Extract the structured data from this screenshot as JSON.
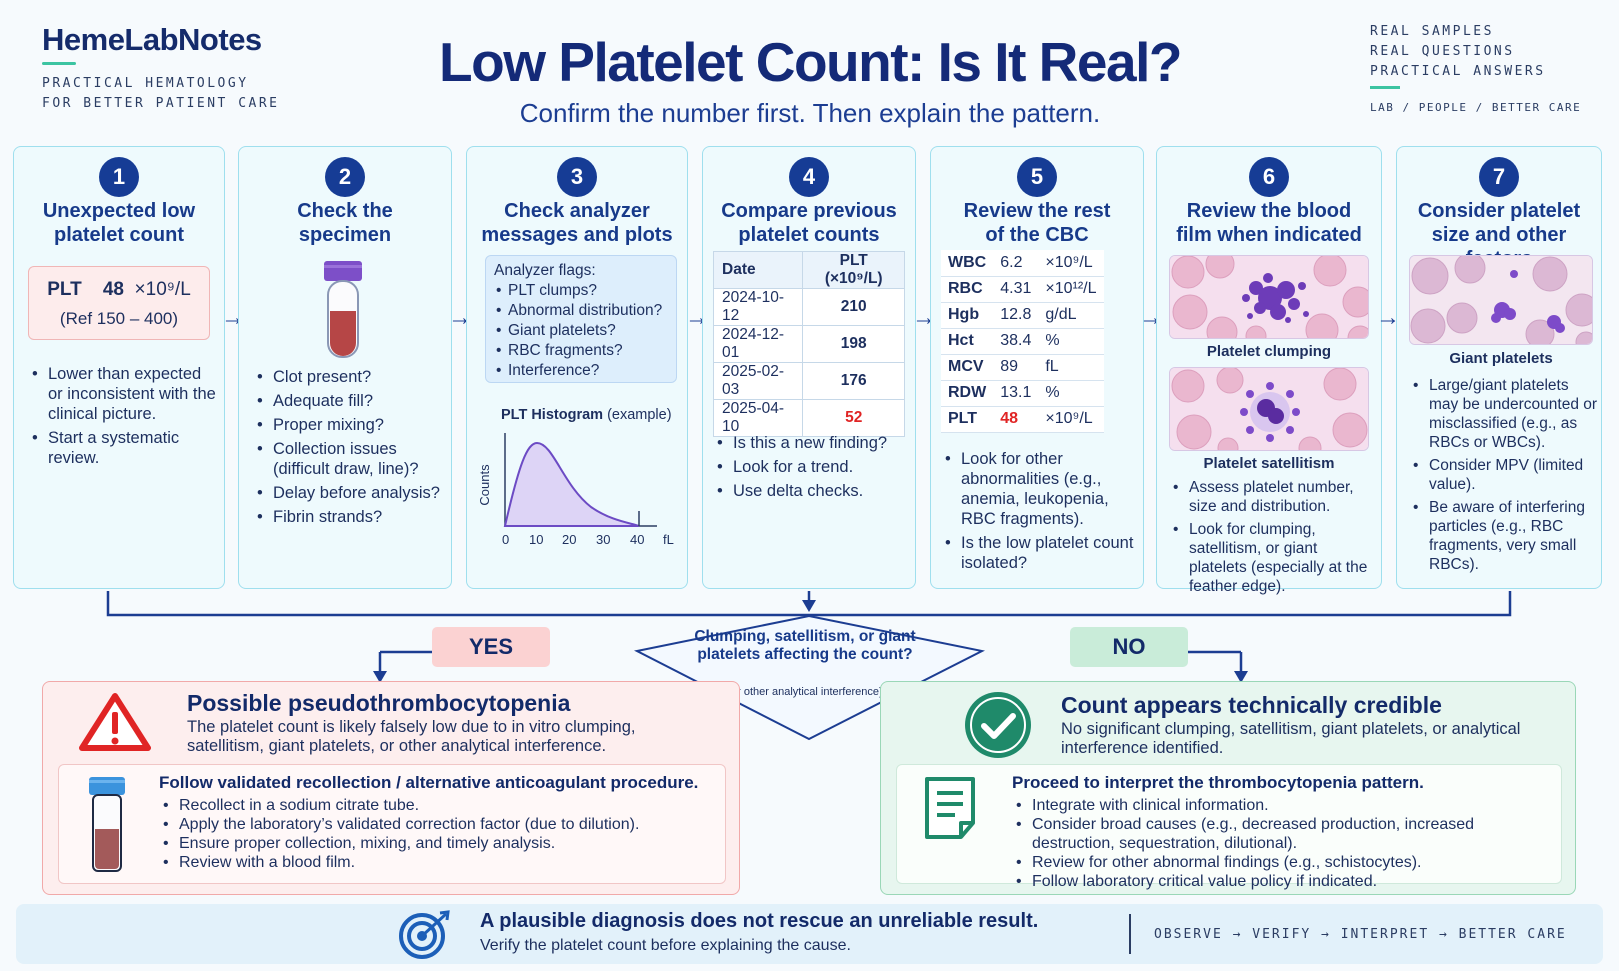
{
  "header": {
    "brand": "HemeLabNotes",
    "brand_sub_1": "PRACTICAL HEMATOLOGY",
    "brand_sub_2": "FOR BETTER PATIENT CARE",
    "title": "Low Platelet Count: Is It Real?",
    "subtitle": "Confirm the number first. Then explain the pattern.",
    "tagline_1": "REAL SAMPLES",
    "tagline_2": "REAL QUESTIONS",
    "tagline_3": "PRACTICAL ANSWERS",
    "tagline_4": "LAB / PEOPLE / BETTER CARE"
  },
  "steps": [
    {
      "number": "1",
      "title_1": "Unexpected low",
      "title_2": "platelet count",
      "plt_label": "PLT",
      "plt_value": "48",
      "plt_unit": "×10⁹/L",
      "plt_ref": "(Ref 150 – 400)",
      "bullets": [
        "Lower than expected or inconsistent with the clinical picture.",
        "Start a systematic review."
      ]
    },
    {
      "number": "2",
      "title_1": "Check the",
      "title_2": "specimen",
      "bullets": [
        "Clot present?",
        "Adequate fill?",
        "Proper mixing?",
        "Collection issues (difficult draw, line)?",
        "Delay before analysis?",
        "Fibrin strands?"
      ]
    },
    {
      "number": "3",
      "title_1": "Check analyzer",
      "title_2": "messages and plots",
      "flags_title": "Analyzer flags:",
      "flags": [
        "PLT clumps?",
        "Abnormal distribution?",
        "Giant platelets?",
        "RBC fragments?",
        "Interference?"
      ],
      "histogram_title": "PLT Histogram",
      "histogram_note": "(example)",
      "histogram_ylabel": "Counts",
      "histogram_ticks": [
        "0",
        "10",
        "20",
        "30",
        "40"
      ],
      "histogram_unit": "fL"
    },
    {
      "number": "4",
      "title_1": "Compare previous",
      "title_2": "platelet counts",
      "table_head": [
        "Date",
        "PLT (×10⁹/L)"
      ],
      "table_rows": [
        {
          "date": "2024-10-12",
          "value": "210"
        },
        {
          "date": "2024-12-01",
          "value": "198"
        },
        {
          "date": "2025-02-03",
          "value": "176"
        },
        {
          "date": "2025-04-10",
          "value": "52"
        }
      ],
      "bullets": [
        "Is this a new finding?",
        "Look for a trend.",
        "Use delta checks."
      ]
    },
    {
      "number": "5",
      "title_1": "Review the rest",
      "title_2": "of the CBC",
      "cbc": [
        {
          "k": "WBC",
          "v": "6.2",
          "u": "×10⁹/L"
        },
        {
          "k": "RBC",
          "v": "4.31",
          "u": "×10¹²/L"
        },
        {
          "k": "Hgb",
          "v": "12.8",
          "u": "g/dL"
        },
        {
          "k": "Hct",
          "v": "38.4",
          "u": "%"
        },
        {
          "k": "MCV",
          "v": "89",
          "u": "fL"
        },
        {
          "k": "RDW",
          "v": "13.1",
          "u": "%"
        },
        {
          "k": "PLT",
          "v": "48",
          "u": "×10⁹/L"
        }
      ],
      "bullets": [
        "Look for other abnormalities (e.g., anemia, leukopenia, RBC fragments).",
        "Is the low platelet count isolated?"
      ]
    },
    {
      "number": "6",
      "title_1": "Review the blood",
      "title_2": "film when indicated",
      "caption_1": "Platelet clumping",
      "caption_2": "Platelet satellitism",
      "bullets": [
        "Assess platelet number, size and distribution.",
        "Look for clumping, satellitism, or giant platelets (especially at the feather edge)."
      ]
    },
    {
      "number": "7",
      "title_1": "Consider platelet",
      "title_2": "size and other factors",
      "caption": "Giant platelets",
      "bullets": [
        "Large/giant platelets may be undercounted or misclassified (e.g., as RBCs or WBCs).",
        "Consider MPV (limited value).",
        "Be aware of interfering particles (e.g., RBC fragments, very small RBCs)."
      ]
    }
  ],
  "decision": {
    "question": "Clumping, satellitism, or giant platelets affecting the count?",
    "question_sub": "(or other analytical interference)",
    "yes": "YES",
    "no": "NO"
  },
  "yes_panel": {
    "title": "Possible pseudothrombocytopenia",
    "desc": "The platelet count is likely falsely low due to in vitro clumping, satellitism, giant platelets, or other analytical interference.",
    "inner_title": "Follow validated recollection / alternative anticoagulant procedure.",
    "items": [
      "Recollect in a sodium citrate tube.",
      "Apply the laboratory’s validated correction factor (due to dilution).",
      "Ensure proper collection, mixing, and timely analysis.",
      "Review with a blood film."
    ]
  },
  "no_panel": {
    "title": "Count appears technically credible",
    "desc": "No significant clumping, satellitism, giant platelets, or analytical interference identified.",
    "inner_title": "Proceed to interpret the thrombocytopenia pattern.",
    "items": [
      "Integrate with clinical information.",
      "Consider broad causes (e.g., decreased production, increased destruction, sequestration, dilutional).",
      "Review for other abnormal findings (e.g., schistocytes).",
      "Follow laboratory critical value policy if indicated."
    ]
  },
  "footer": {
    "main": "A plausible diagnosis does not rescue an unreliable result.",
    "sub": "Verify the platelet count before explaining the cause.",
    "motto": "OBSERVE → VERIFY → INTERPRET → BETTER CARE"
  },
  "colors": {
    "navy": "#142a78",
    "teal": "#3cc4a2",
    "alert_red": "#e02424",
    "card_bg": "#eefafd"
  }
}
